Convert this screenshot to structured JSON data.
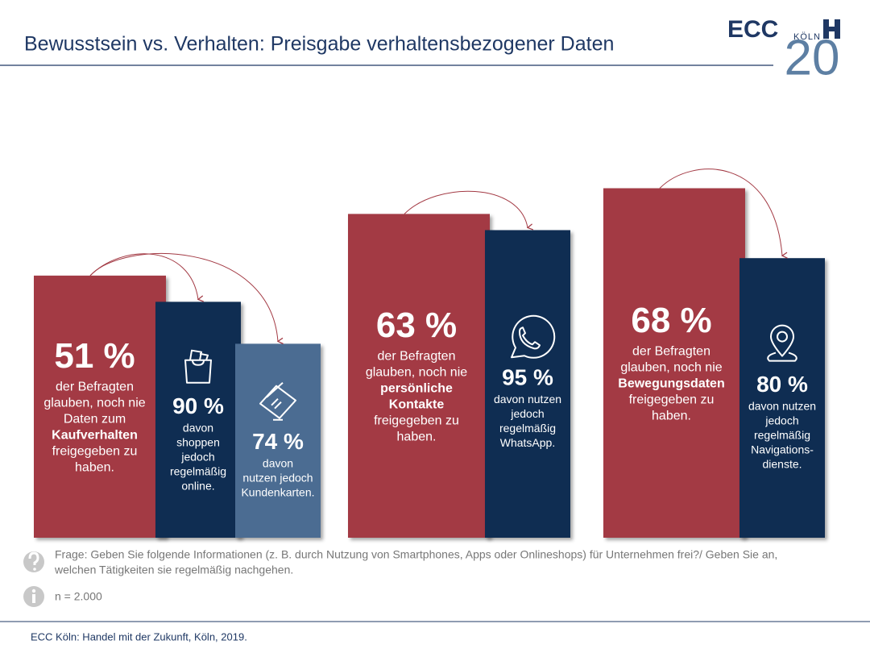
{
  "chart_data": {
    "type": "nested-bar",
    "title": "Bewusstsein vs. Verhalten: Preisgabe verhaltensbezogener Daten",
    "logo": {
      "name": "ECC",
      "city": "KÖLN",
      "number": "20"
    },
    "groups": [
      {
        "value": 51,
        "value_label": "51 %",
        "color": "#a33a44",
        "lines": [
          {
            "text": "der Befragten"
          },
          {
            "text": "glauben, noch nie"
          },
          {
            "text": "Daten zum"
          },
          {
            "text": "Kaufverhalten",
            "bold": true
          },
          {
            "text": "freigegeben zu"
          },
          {
            "text": "haben."
          }
        ],
        "children": [
          {
            "value": 90,
            "value_label": "90 %",
            "color": "#0f2d52",
            "icon": "bag",
            "lines": [
              {
                "text": "davon"
              },
              {
                "text": "shoppen"
              },
              {
                "text": "jedoch"
              },
              {
                "text": "regelmäßig"
              },
              {
                "text": "online."
              }
            ]
          },
          {
            "value": 74,
            "value_label": "74 %",
            "color": "#4b6c92",
            "icon": "card",
            "lines": [
              {
                "text": "davon"
              },
              {
                "text": "nutzen jedoch"
              },
              {
                "text": "Kundenkarten."
              }
            ]
          }
        ]
      },
      {
        "value": 63,
        "value_label": "63 %",
        "color": "#a33a44",
        "lines": [
          {
            "text": "der Befragten"
          },
          {
            "text": "glauben, noch nie"
          },
          {
            "text": "persönliche",
            "bold": true
          },
          {
            "text": "Kontakte",
            "bold": true
          },
          {
            "text": "freigegeben zu"
          },
          {
            "text": "haben."
          }
        ],
        "children": [
          {
            "value": 95,
            "value_label": "95 %",
            "color": "#0f2d52",
            "icon": "phone",
            "lines": [
              {
                "text": "davon nutzen"
              },
              {
                "text": "jedoch"
              },
              {
                "text": "regelmäßig"
              },
              {
                "text": "WhatsApp."
              }
            ]
          }
        ]
      },
      {
        "value": 68,
        "value_label": "68 %",
        "color": "#a33a44",
        "lines": [
          {
            "text": "der Befragten"
          },
          {
            "text": "glauben, noch nie"
          },
          {
            "text": "Bewegungsdaten",
            "bold": true
          },
          {
            "text": "freigegeben zu"
          },
          {
            "text": "haben."
          }
        ],
        "children": [
          {
            "value": 80,
            "value_label": "80 %",
            "color": "#0f2d52",
            "icon": "pin",
            "lines": [
              {
                "text": "davon nutzen"
              },
              {
                "text": "jedoch"
              },
              {
                "text": "regelmäßig"
              },
              {
                "text": "Navigations-"
              },
              {
                "text": "dienste."
              }
            ]
          }
        ]
      }
    ],
    "question": [
      "Frage: Geben Sie folgende Informationen (z. B. durch Nutzung von Smartphones, Apps oder Onlineshops) für Unternehmen frei?/ Geben Sie an,",
      "welchen Tätigkeiten sie regelmäßig nachgehen."
    ],
    "sample": "n = 2.000",
    "source": "ECC Köln: Handel mit der Zukunft, Köln, 2019."
  }
}
